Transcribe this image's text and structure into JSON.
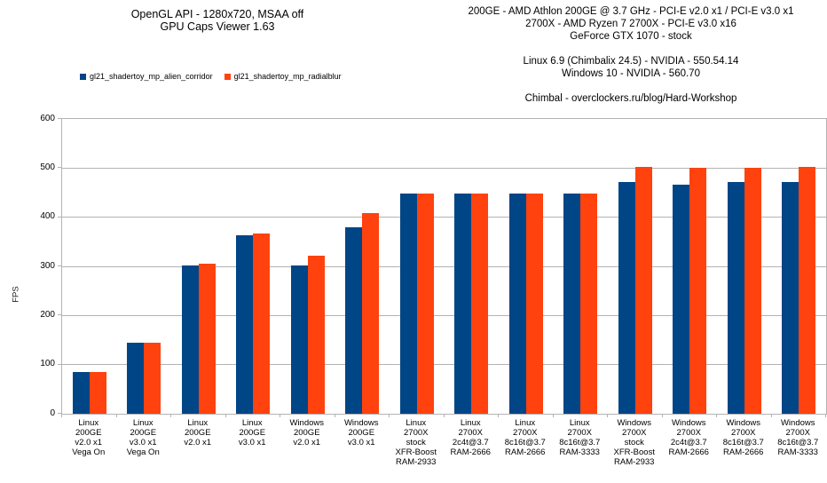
{
  "chart_data": {
    "type": "bar",
    "title": "OpenGL API - 1280x720, MSAA off",
    "subtitle": "GPU Caps Viewer 1.63",
    "annotations": {
      "system": [
        "200GE - AMD Athlon 200GE @ 3.7 GHz - PCI-E v2.0 x1 / PCI-E v3.0 x1",
        "2700X - AMD Ryzen 7 2700X - PCI-E v3.0 x16",
        "GeForce GTX 1070 - stock"
      ],
      "drivers": [
        "Linux 6.9 (Chimbalix 24.5) - NVIDIA - 550.54.14",
        "Windows 10 - NVIDIA - 560.70"
      ],
      "credit": "Chimbal - overclockers.ru/blog/Hard-Workshop"
    },
    "ylabel": "FPS",
    "xlabel": "",
    "ylim": [
      0,
      600
    ],
    "yticks": [
      0,
      100,
      200,
      300,
      400,
      500,
      600
    ],
    "grid": true,
    "legend_position": "top-left",
    "categories": [
      [
        "Linux",
        "200GE",
        "v2.0 x1",
        "Vega On"
      ],
      [
        "Linux",
        "200GE",
        "v3.0 x1",
        "Vega On"
      ],
      [
        "Linux",
        "200GE",
        "v2.0 x1"
      ],
      [
        "Linux",
        "200GE",
        "v3.0 x1"
      ],
      [
        "Windows",
        "200GE",
        "v2.0 x1"
      ],
      [
        "Windows",
        "200GE",
        "v3.0 x1"
      ],
      [
        "Linux",
        "2700X",
        "stock",
        "XFR-Boost",
        "RAM-2933"
      ],
      [
        "Linux",
        "2700X",
        "2c4t@3.7",
        "RAM-2666"
      ],
      [
        "Linux",
        "2700X",
        "8c16t@3.7",
        "RAM-2666"
      ],
      [
        "Linux",
        "2700X",
        "8c16t@3.7",
        "RAM-3333"
      ],
      [
        "Windows",
        "2700X",
        "stock",
        "XFR-Boost",
        "RAM-2933"
      ],
      [
        "Windows",
        "2700X",
        "2c4t@3.7",
        "RAM-2666"
      ],
      [
        "Windows",
        "2700X",
        "8c16t@3.7",
        "RAM-2666"
      ],
      [
        "Windows",
        "2700X",
        "8c16t@3.7",
        "RAM-3333"
      ]
    ],
    "series": [
      {
        "name": "gl21_shadertoy_mp_alien_corridor",
        "color": "#004586",
        "values": [
          85,
          144,
          302,
          363,
          302,
          380,
          448,
          448,
          448,
          448,
          472,
          466,
          472,
          471
        ]
      },
      {
        "name": "gl21_shadertoy_mp_radialblur",
        "color": "#FF420E",
        "values": [
          85,
          144,
          306,
          367,
          321,
          409,
          448,
          448,
          448,
          448,
          503,
          500,
          500,
          503
        ]
      }
    ],
    "colors": {
      "gridline": "#b3b3b3",
      "text": "#000000",
      "background": "#ffffff"
    }
  }
}
